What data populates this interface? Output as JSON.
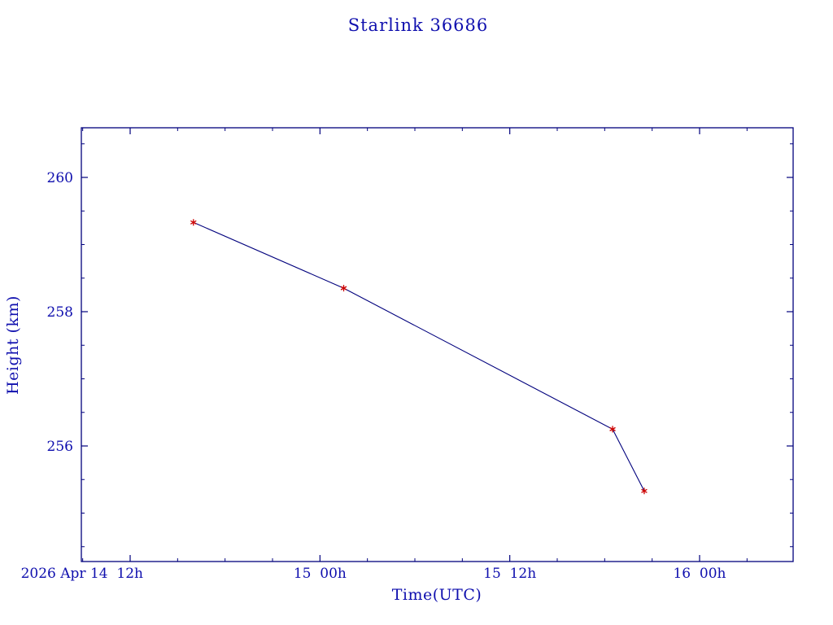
{
  "title": "Starlink 36686",
  "xlabel": "Time(UTC)",
  "ylabel": "Height (km)",
  "colors": {
    "text": "#0f0fae",
    "axis": "#00007d",
    "line": "#00007d",
    "marker": "#cc0000"
  },
  "x_ticks": [
    {
      "hours": 0,
      "label": "2026 Apr 14  12h"
    },
    {
      "hours": 12,
      "label": "15  00h"
    },
    {
      "hours": 24,
      "label": "15  12h"
    },
    {
      "hours": 36,
      "label": "16  00h"
    }
  ],
  "y_ticks": [
    {
      "value": 260,
      "label": "260"
    },
    {
      "value": 258,
      "label": "258"
    },
    {
      "value": 256,
      "label": "256"
    }
  ],
  "chart_data": {
    "type": "line",
    "title": "Starlink 36686",
    "xlabel": "Time(UTC)",
    "ylabel": "Height (km)",
    "x_unit": "hours since 2026-04-14 12:00 UTC",
    "x": [
      4,
      13.5,
      30.5,
      32.5
    ],
    "y": [
      259.33,
      258.35,
      256.25,
      255.33
    ],
    "point_times_utc": [
      "2026-04-14 16:00",
      "2026-04-15 01:30",
      "2026-04-15 18:30",
      "2026-04-15 20:30"
    ],
    "x_tick_hours": [
      0,
      12,
      24,
      36
    ],
    "x_tick_labels": [
      "2026 Apr 14 12h",
      "15 00h",
      "15 12h",
      "16 00h"
    ],
    "y_tick_values": [
      260,
      258,
      256
    ],
    "x_range_hours": [
      -3.1,
      41.9
    ],
    "y_range": [
      254.3,
      260.75
    ],
    "marker": "asterisk",
    "marker_color": "#cc0000",
    "line_color": "#00007d",
    "grid": false,
    "legend": null
  }
}
